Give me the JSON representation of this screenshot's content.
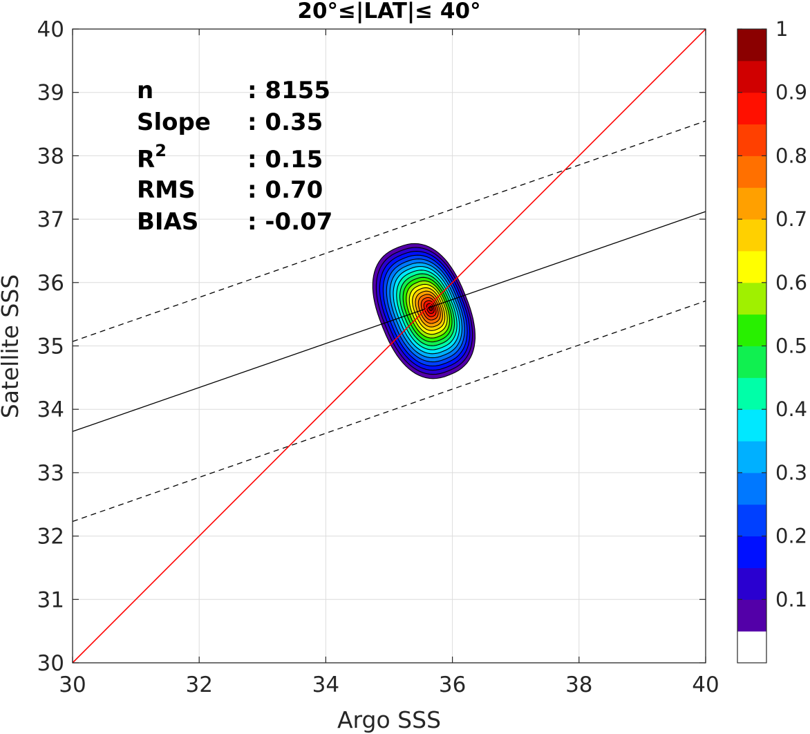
{
  "chart_data": {
    "type": "contour",
    "title": "20°≤|LAT|≤ 40°",
    "xlabel": "Argo SSS",
    "ylabel": "Satellite SSS",
    "xlim": [
      30,
      40
    ],
    "ylim": [
      30,
      40
    ],
    "xticks": [
      30,
      32,
      34,
      36,
      38,
      40
    ],
    "yticks": [
      30,
      31,
      32,
      33,
      34,
      35,
      36,
      37,
      38,
      39,
      40
    ],
    "grid": true,
    "stats": [
      {
        "label": "n",
        "value": ": 8155"
      },
      {
        "label": "Slope",
        "value": ": 0.35"
      },
      {
        "label": "R",
        "sup": "2",
        "value": ": 0.15"
      },
      {
        "label": "RMS",
        "value": ": 0.70"
      },
      {
        "label": "BIAS",
        "value": ": -0.07"
      }
    ],
    "lines": {
      "one_to_one": {
        "x": [
          30,
          40
        ],
        "y": [
          30,
          40
        ],
        "color": "#ff0000",
        "style": "solid"
      },
      "regression": {
        "x": [
          30,
          40
        ],
        "y": [
          33.65,
          37.12
        ],
        "color": "#000000",
        "style": "solid"
      },
      "upper_bound": {
        "x": [
          30,
          40
        ],
        "y": [
          35.07,
          38.55
        ],
        "color": "#000000",
        "style": "dashed"
      },
      "lower_bound": {
        "x": [
          30,
          40
        ],
        "y": [
          32.23,
          35.71
        ],
        "color": "#000000",
        "style": "dashed"
      }
    },
    "density_peak": {
      "x": 35.55,
      "y": 35.55
    },
    "contour_levels": [
      0.05,
      0.1,
      0.15,
      0.2,
      0.25,
      0.3,
      0.35,
      0.4,
      0.45,
      0.5,
      0.55,
      0.6,
      0.65,
      0.7,
      0.75,
      0.8,
      0.85,
      0.9,
      0.95
    ],
    "colorbar": {
      "range": [
        0,
        1
      ],
      "tick_values": [
        0.1,
        0.2,
        0.3,
        0.4,
        0.5,
        0.6,
        0.7,
        0.8,
        0.9,
        1
      ],
      "tick_labels": [
        "0.1",
        "0.2",
        "0.3",
        "0.4",
        "0.5",
        "0.6",
        "0.7",
        "0.8",
        "0.9",
        "1"
      ],
      "colors": [
        "#ffffff",
        "#5300a8",
        "#2a00d0",
        "#0010ff",
        "#0040ff",
        "#0078ff",
        "#00b0ff",
        "#00e8ff",
        "#00ffa8",
        "#10f050",
        "#28f000",
        "#a0f000",
        "#ffff00",
        "#ffd000",
        "#ffa000",
        "#ff7000",
        "#ff4000",
        "#ff1000",
        "#d00000",
        "#8b0000"
      ]
    }
  }
}
